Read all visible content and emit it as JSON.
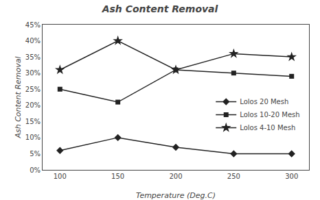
{
  "chart_data": {
    "type": "line",
    "title": "Ash Content Removal",
    "xlabel": "Temperature (Deg.C)",
    "ylabel": "Ash Content Removal",
    "x": [
      100,
      150,
      200,
      250,
      300
    ],
    "series": [
      {
        "name": "Lolos 20 Mesh",
        "color": "#222222",
        "marker": "diamond",
        "values": [
          0.06,
          0.1,
          0.07,
          0.05,
          0.05
        ]
      },
      {
        "name": "Lolos 10-20 Mesh",
        "color": "#222222",
        "marker": "square",
        "values": [
          0.25,
          0.21,
          0.31,
          0.3,
          0.29
        ]
      },
      {
        "name": "Lolos 4-10 Mesh",
        "color": "#222222",
        "marker": "star",
        "values": [
          0.31,
          0.4,
          0.31,
          0.36,
          0.35
        ]
      }
    ],
    "xlim": [
      85,
      315
    ],
    "xticks": [
      100,
      150,
      200,
      250,
      300
    ],
    "ylim": [
      0.0,
      0.45
    ],
    "yticks": [
      {
        "value": 0.0,
        "label": "0%"
      },
      {
        "value": 0.05,
        "label": "5%"
      },
      {
        "value": 0.1,
        "label": "10%"
      },
      {
        "value": 0.15,
        "label": "15%"
      },
      {
        "value": 0.2,
        "label": "20%"
      },
      {
        "value": 0.25,
        "label": "25%"
      },
      {
        "value": 0.3,
        "label": "30%"
      },
      {
        "value": 0.35,
        "label": "35%"
      },
      {
        "value": 0.4,
        "label": "40%"
      },
      {
        "value": 0.45,
        "label": "45%"
      }
    ],
    "grid": false,
    "legend": "right"
  }
}
